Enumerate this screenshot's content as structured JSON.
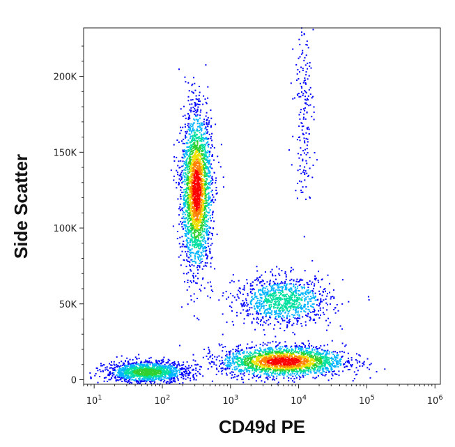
{
  "chart_data": {
    "type": "scatter",
    "subtype": "flow-cytometry-density-dot-plot",
    "xlabel": "CD49d PE",
    "ylabel": "Side Scatter",
    "xscale": "log",
    "xlim": [
      7,
      1200000
    ],
    "ylim": [
      -3000,
      232000
    ],
    "x_ticks": [
      {
        "base": "10",
        "exp": "1",
        "value": 10
      },
      {
        "base": "10",
        "exp": "2",
        "value": 100
      },
      {
        "base": "10",
        "exp": "3",
        "value": 1000
      },
      {
        "base": "10",
        "exp": "4",
        "value": 10000
      },
      {
        "base": "10",
        "exp": "5",
        "value": 100000
      },
      {
        "base": "10",
        "exp": "6",
        "value": 1000000
      }
    ],
    "y_ticks": [
      {
        "label": "0",
        "value": 0
      },
      {
        "label": "50K",
        "value": 50000
      },
      {
        "label": "100K",
        "value": 100000
      },
      {
        "label": "150K",
        "value": 150000
      },
      {
        "label": "200K",
        "value": 200000
      }
    ],
    "colormap": [
      "#0000ff",
      "#00b4ff",
      "#00e0a0",
      "#30d030",
      "#f0e000",
      "#ff8000",
      "#ff0000"
    ],
    "grid": false,
    "legend": "none",
    "populations": [
      {
        "name": "",
        "center_x": 320,
        "center_y": 125000,
        "spread_log_x": 0.11,
        "spread_y": 25000,
        "count": 2600,
        "peak_density": 1.0
      },
      {
        "name": "",
        "center_x": 6000,
        "center_y": 12000,
        "spread_log_x": 0.45,
        "spread_y": 5000,
        "count": 2200,
        "peak_density": 1.0
      },
      {
        "name": "",
        "center_x": 60,
        "center_y": 5000,
        "spread_log_x": 0.3,
        "spread_y": 3500,
        "count": 1400,
        "peak_density": 0.55
      },
      {
        "name": "",
        "center_x": 6000,
        "center_y": 52000,
        "spread_log_x": 0.35,
        "spread_y": 8000,
        "count": 1000,
        "peak_density": 0.4
      },
      {
        "name": "",
        "center_x": 12000,
        "center_y": 180000,
        "spread_log_x": 0.07,
        "spread_y": 30000,
        "count": 180,
        "peak_density": 0.12
      }
    ]
  }
}
